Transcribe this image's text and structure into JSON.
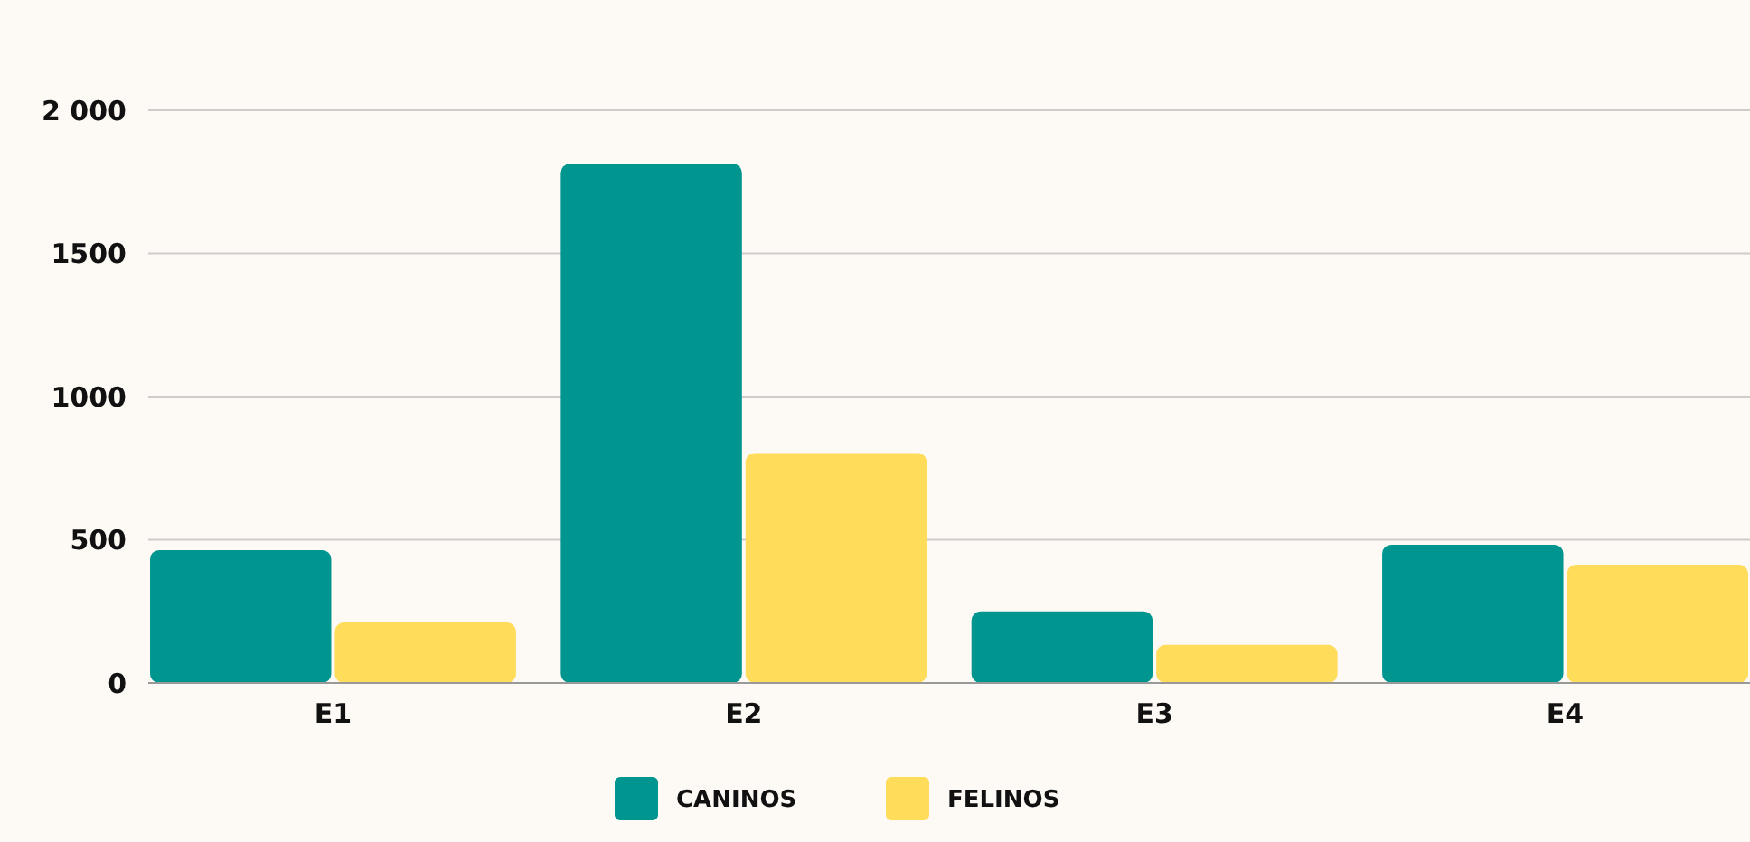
{
  "chart_data": {
    "type": "bar",
    "categories": [
      "E1",
      "E2",
      "E3",
      "E4"
    ],
    "series": [
      {
        "name": "CANINOS",
        "color": "#00968f",
        "values": [
          464,
          1813,
          250,
          483
        ]
      },
      {
        "name": "FELINOS",
        "color": "#ffdc5a",
        "values": [
          211,
          803,
          133,
          413
        ]
      }
    ],
    "ylim": [
      0,
      2000
    ],
    "yticks": [
      0,
      500,
      1000,
      1500,
      {
        "value": 2000,
        "label": "2 000"
      }
    ],
    "grid": "y",
    "legend": "bottom"
  }
}
